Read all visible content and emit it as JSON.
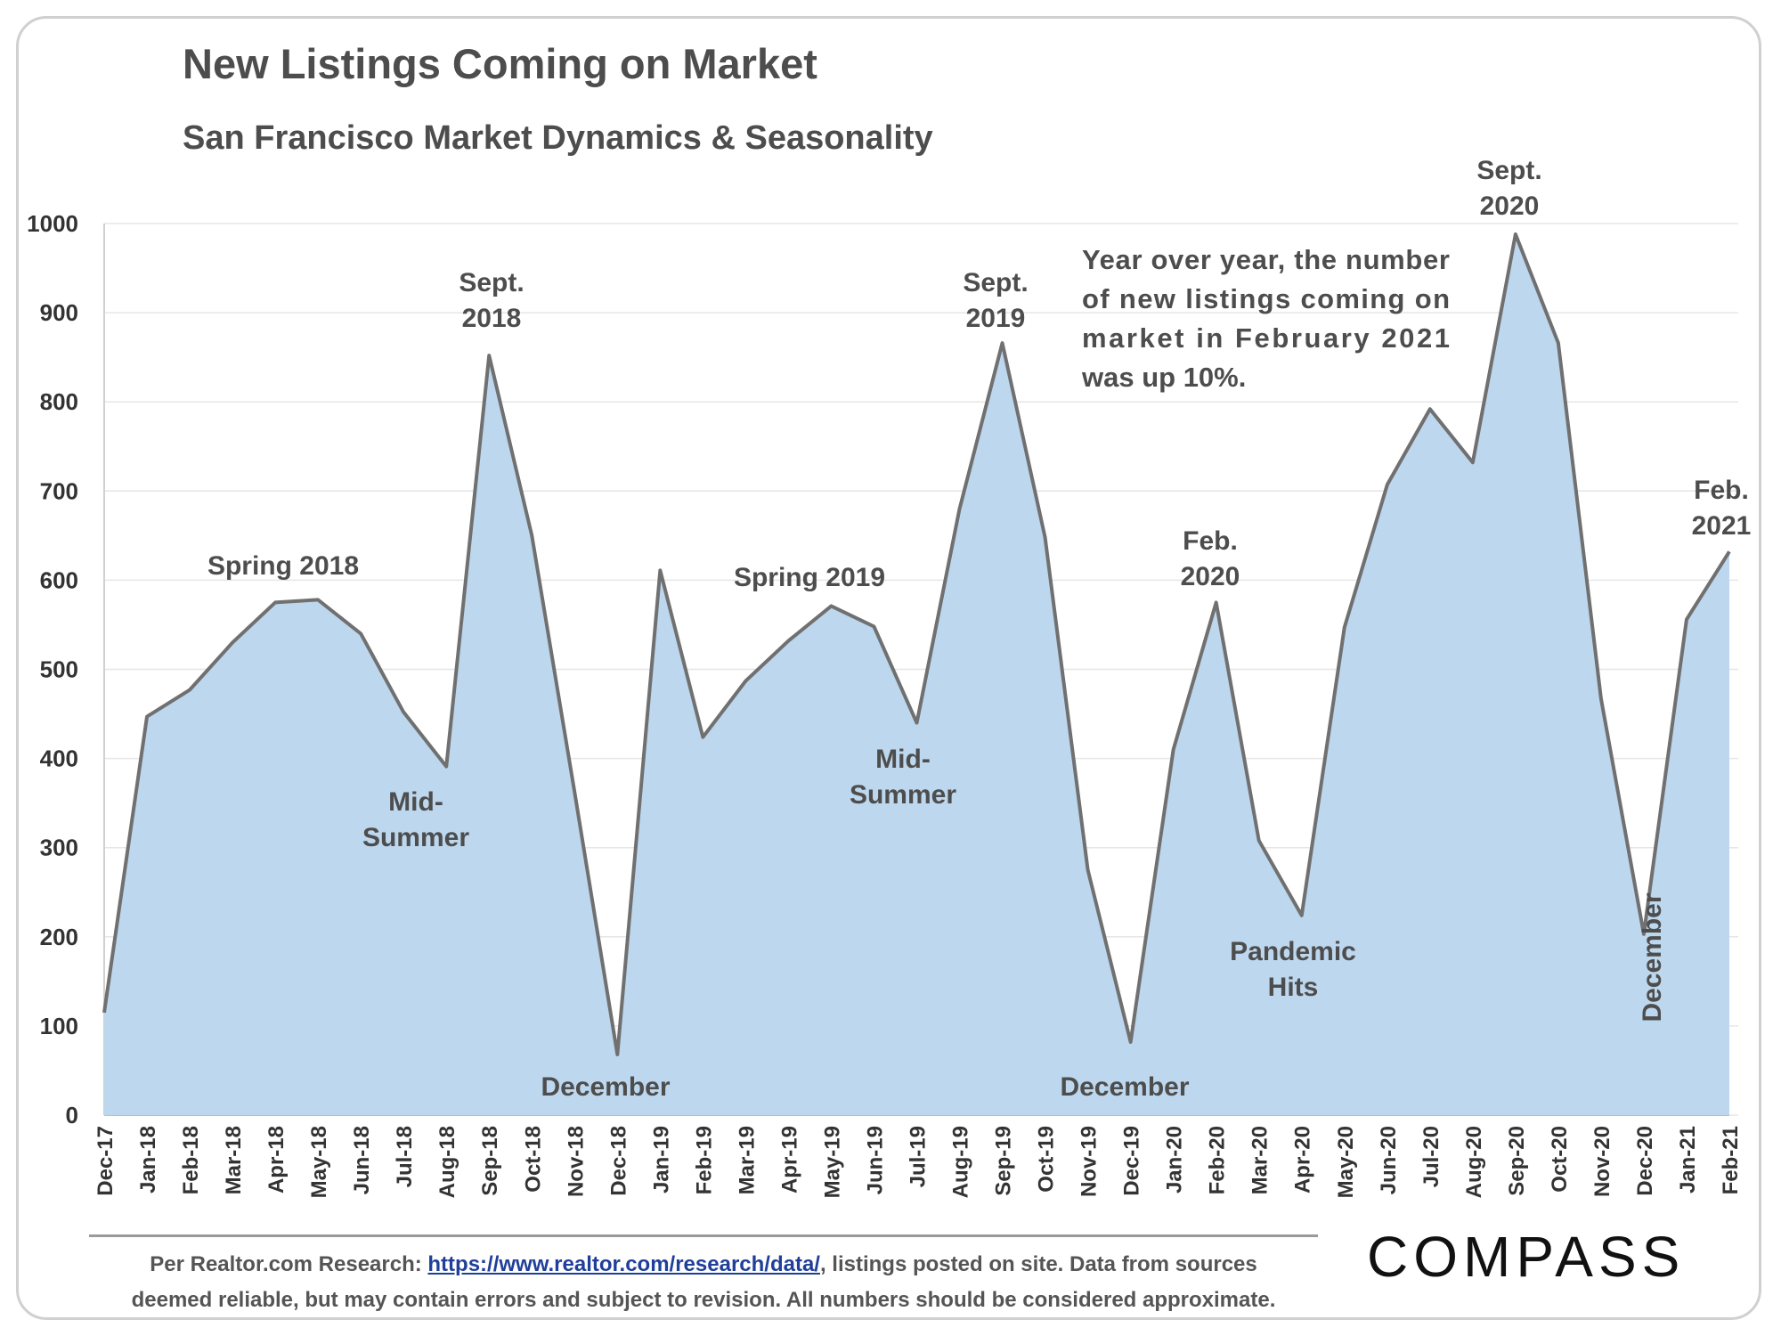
{
  "title": "New Listings Coming on Market",
  "subtitle": "San Francisco Market Dynamics & Seasonality",
  "chart_data": {
    "type": "area",
    "categories": [
      "Dec-17",
      "Jan-18",
      "Feb-18",
      "Mar-18",
      "Apr-18",
      "May-18",
      "Jun-18",
      "Jul-18",
      "Aug-18",
      "Sep-18",
      "Oct-18",
      "Nov-18",
      "Dec-18",
      "Jan-19",
      "Feb-19",
      "Mar-19",
      "Apr-19",
      "May-19",
      "Jun-19",
      "Jul-19",
      "Aug-19",
      "Sep-19",
      "Oct-19",
      "Nov-19",
      "Dec-19",
      "Jan-20",
      "Feb-20",
      "Mar-20",
      "Apr-20",
      "May-20",
      "Jun-20",
      "Jul-20",
      "Aug-20",
      "Sep-20",
      "Oct-20",
      "Nov-20",
      "Dec-20",
      "Jan-21",
      "Feb-21"
    ],
    "values": [
      115,
      447,
      477,
      530,
      575,
      578,
      540,
      452,
      391,
      852,
      650,
      362,
      68,
      611,
      424,
      487,
      532,
      571,
      548,
      440,
      680,
      866,
      648,
      275,
      82,
      410,
      575,
      308,
      224,
      547,
      707,
      792,
      732,
      988,
      866,
      467,
      203,
      556,
      632
    ],
    "ylim": [
      0,
      1000
    ],
    "yticks": [
      0,
      100,
      200,
      300,
      400,
      500,
      600,
      700,
      800,
      900,
      1000
    ],
    "grid": true,
    "fill_color": "#bdd7ee",
    "line_color": "#707070",
    "annotations": [
      {
        "lines": [
          "Spring 2018"
        ],
        "color": "#4d4d4d"
      },
      {
        "lines": [
          "Sept.",
          "2018"
        ],
        "color": "#4d4d4d"
      },
      {
        "lines": [
          "Mid-",
          "Summer"
        ],
        "color": "#4d4d4d"
      },
      {
        "lines": [
          "December"
        ],
        "color": "#4d4d4d"
      },
      {
        "lines": [
          "Spring 2019"
        ],
        "color": "#4d4d4d"
      },
      {
        "lines": [
          "Sept.",
          "2019"
        ],
        "color": "#4d4d4d"
      },
      {
        "lines": [
          "Mid-",
          "Summer"
        ],
        "color": "#4d4d4d"
      },
      {
        "lines": [
          "December"
        ],
        "color": "#4d4d4d"
      },
      {
        "lines": [
          "Feb.",
          "2020"
        ],
        "color": "#4d4d4d"
      },
      {
        "lines": [
          "Pandemic",
          "Hits"
        ],
        "color": "#7b0c0c"
      },
      {
        "lines": [
          "Sept.",
          "2020"
        ],
        "color": "#4d4d4d"
      },
      {
        "lines": [
          "December"
        ],
        "color": "#4d4d4d"
      },
      {
        "lines": [
          "Feb.",
          "2021"
        ],
        "color": "#4d4d4d"
      }
    ],
    "note_lines": [
      "Year over year, the number",
      "of new listings coming on",
      "market in February 2021",
      "was up 10%."
    ]
  },
  "footer": {
    "prefix": "Per Realtor.com Research: ",
    "link": "https://www.realtor.com/research/data/",
    "suffix": ", listings posted on site. Data from sources",
    "line2": "deemed reliable, but may contain errors and subject to revision. All numbers should be considered approximate."
  },
  "logo": "COMPASS"
}
